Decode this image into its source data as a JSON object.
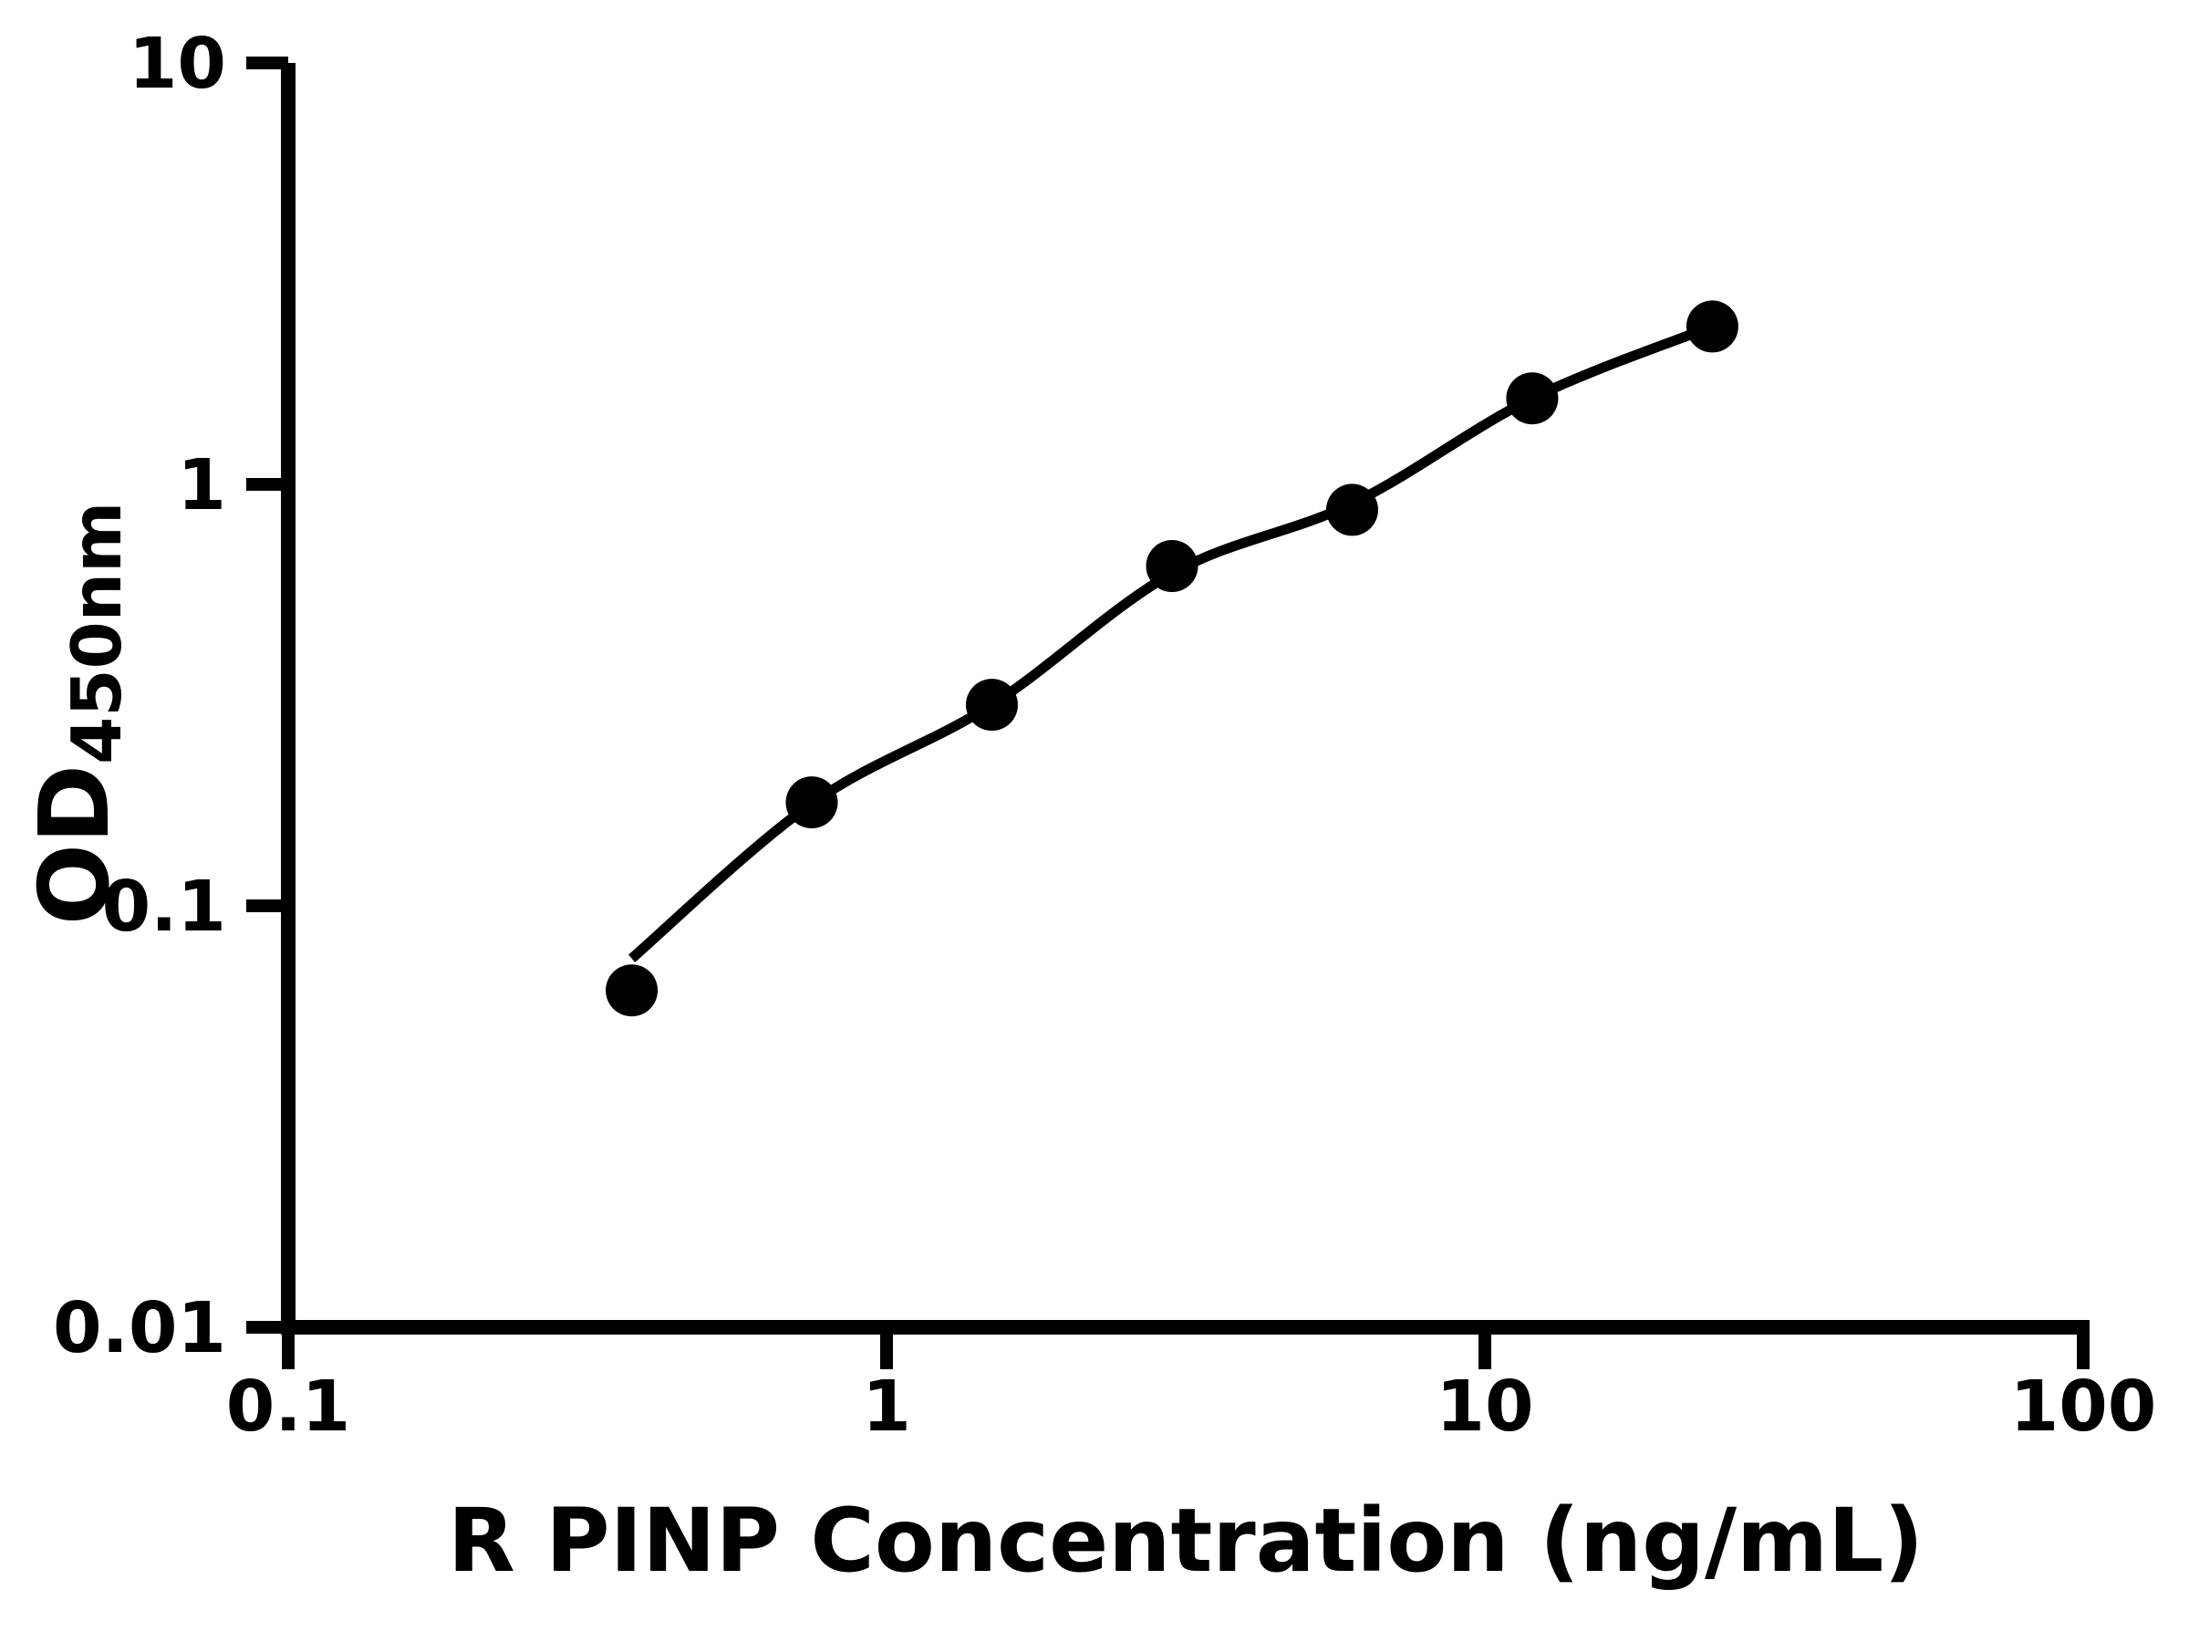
{
  "chart_data": {
    "type": "scatter",
    "title": "",
    "xlabel": "R PINP Concentration (ng/mL)",
    "ylabel": "OD450nm",
    "ylabel_main": "OD",
    "ylabel_sub": "450nm",
    "x_scale": "log",
    "y_scale": "log",
    "xlim": [
      0.1,
      100
    ],
    "ylim": [
      0.01,
      10
    ],
    "grid": false,
    "legend": "none",
    "marker_color": "#000000",
    "line_color": "#000000",
    "x_ticks": [
      {
        "value": 0.1,
        "label": "0.1"
      },
      {
        "value": 1,
        "label": "1"
      },
      {
        "value": 10,
        "label": "10"
      },
      {
        "value": 100,
        "label": "100"
      }
    ],
    "y_ticks": [
      {
        "value": 10,
        "label": "10"
      },
      {
        "value": 1,
        "label": "1"
      },
      {
        "value": 0.1,
        "label": "0.1"
      },
      {
        "value": 0.01,
        "label": "0.01"
      }
    ],
    "points": [
      {
        "x": 0.375,
        "y": 0.063
      },
      {
        "x": 0.75,
        "y": 0.176
      },
      {
        "x": 1.5,
        "y": 0.3
      },
      {
        "x": 3,
        "y": 0.64
      },
      {
        "x": 6,
        "y": 0.87
      },
      {
        "x": 12,
        "y": 1.6
      },
      {
        "x": 24,
        "y": 2.37
      }
    ],
    "curve_points": [
      {
        "x": 0.375,
        "y": 0.075
      },
      {
        "x": 0.75,
        "y": 0.175
      },
      {
        "x": 1.5,
        "y": 0.3
      },
      {
        "x": 3,
        "y": 0.615
      },
      {
        "x": 6,
        "y": 0.9
      },
      {
        "x": 12,
        "y": 1.6
      },
      {
        "x": 24,
        "y": 2.37
      }
    ]
  }
}
